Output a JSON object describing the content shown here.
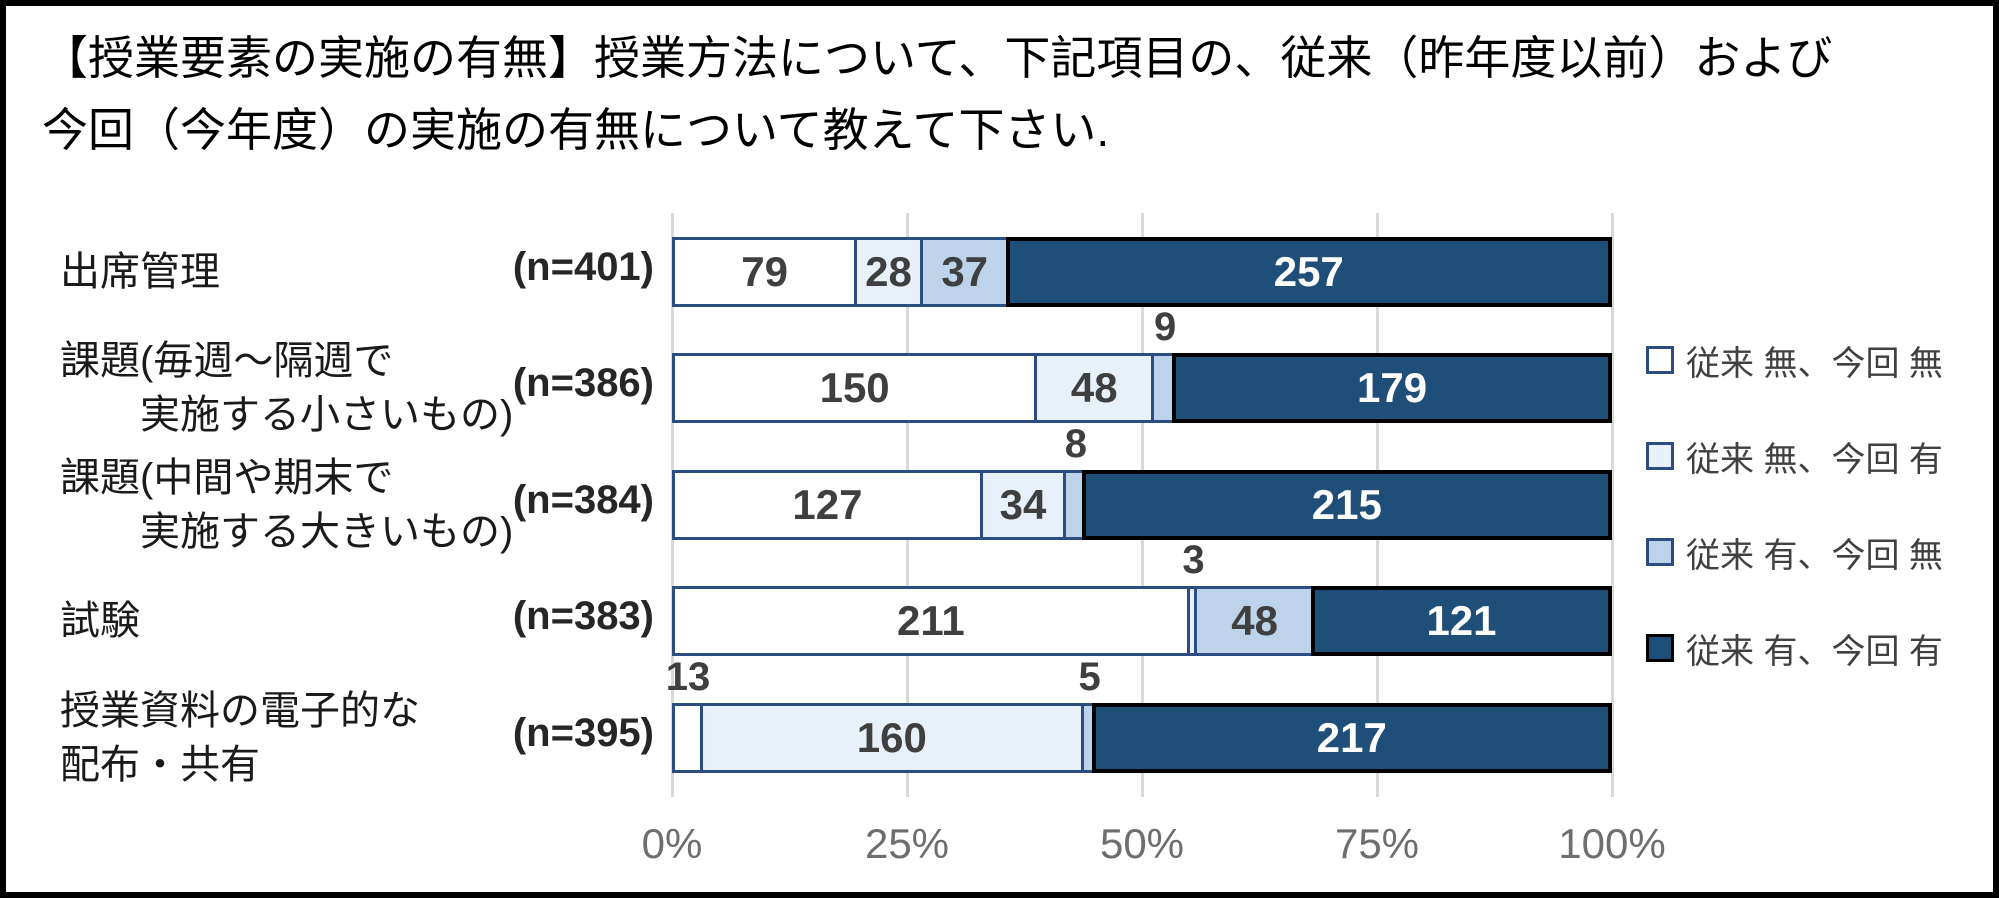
{
  "title": {
    "line1": "【授業要素の実施の有無】授業方法について、下記項目の、従来（昨年度以前）および",
    "line2": "今回（今年度）の実施の有無について教えて下さい."
  },
  "chart_data": {
    "type": "bar",
    "subtype": "horizontal-100pct-stacked",
    "title": "授業要素の実施の有無",
    "unit": "回答数",
    "categories": [
      {
        "label_lines": [
          "出席管理"
        ],
        "indent_line2": false,
        "n_label": "(n=401)",
        "total": 401
      },
      {
        "label_lines": [
          "課題(毎週～隔週で",
          "実施する小さいもの)"
        ],
        "indent_line2": true,
        "n_label": "(n=386)",
        "total": 386
      },
      {
        "label_lines": [
          "課題(中間や期末で",
          "実施する大きいもの)"
        ],
        "indent_line2": true,
        "n_label": "(n=384)",
        "total": 384
      },
      {
        "label_lines": [
          "試験"
        ],
        "indent_line2": false,
        "n_label": "(n=383)",
        "total": 383
      },
      {
        "label_lines": [
          "授業資料の電子的な",
          "配布・共有"
        ],
        "indent_line2": false,
        "n_label": "(n=395)",
        "total": 395
      }
    ],
    "series": [
      {
        "name": "従来 無、今回 無",
        "fill": "#ffffff",
        "border": "#2b4d80",
        "values": [
          79,
          150,
          127,
          211,
          13
        ]
      },
      {
        "name": "従来 無、今回 有",
        "fill": "#e8f1fa",
        "border": "#2b4d80",
        "values": [
          28,
          48,
          34,
          3,
          160
        ]
      },
      {
        "name": "従来 有、今回 無",
        "fill": "#bcd3ea",
        "border": "#2b4d80",
        "values": [
          37,
          9,
          8,
          48,
          5
        ]
      },
      {
        "name": "従来 有、今回 有",
        "fill": "#1f4e79",
        "border": "#000000",
        "values": [
          257,
          179,
          215,
          121,
          217
        ]
      }
    ],
    "x_axis": {
      "tick_labels": [
        "0%",
        "25%",
        "50%",
        "75%",
        "100%"
      ],
      "range_pct": [
        0,
        100
      ],
      "gridlines": true
    },
    "legend_position": "right"
  },
  "colors": {
    "background": "#ffffff",
    "frame_border": "#000000",
    "gridline": "#d9d9d9",
    "axis_text": "#6e6e6e",
    "category_text": "#1a1a1a",
    "value_text_on_light": "#3f3f3f",
    "value_text_on_dark": "#ffffff"
  }
}
